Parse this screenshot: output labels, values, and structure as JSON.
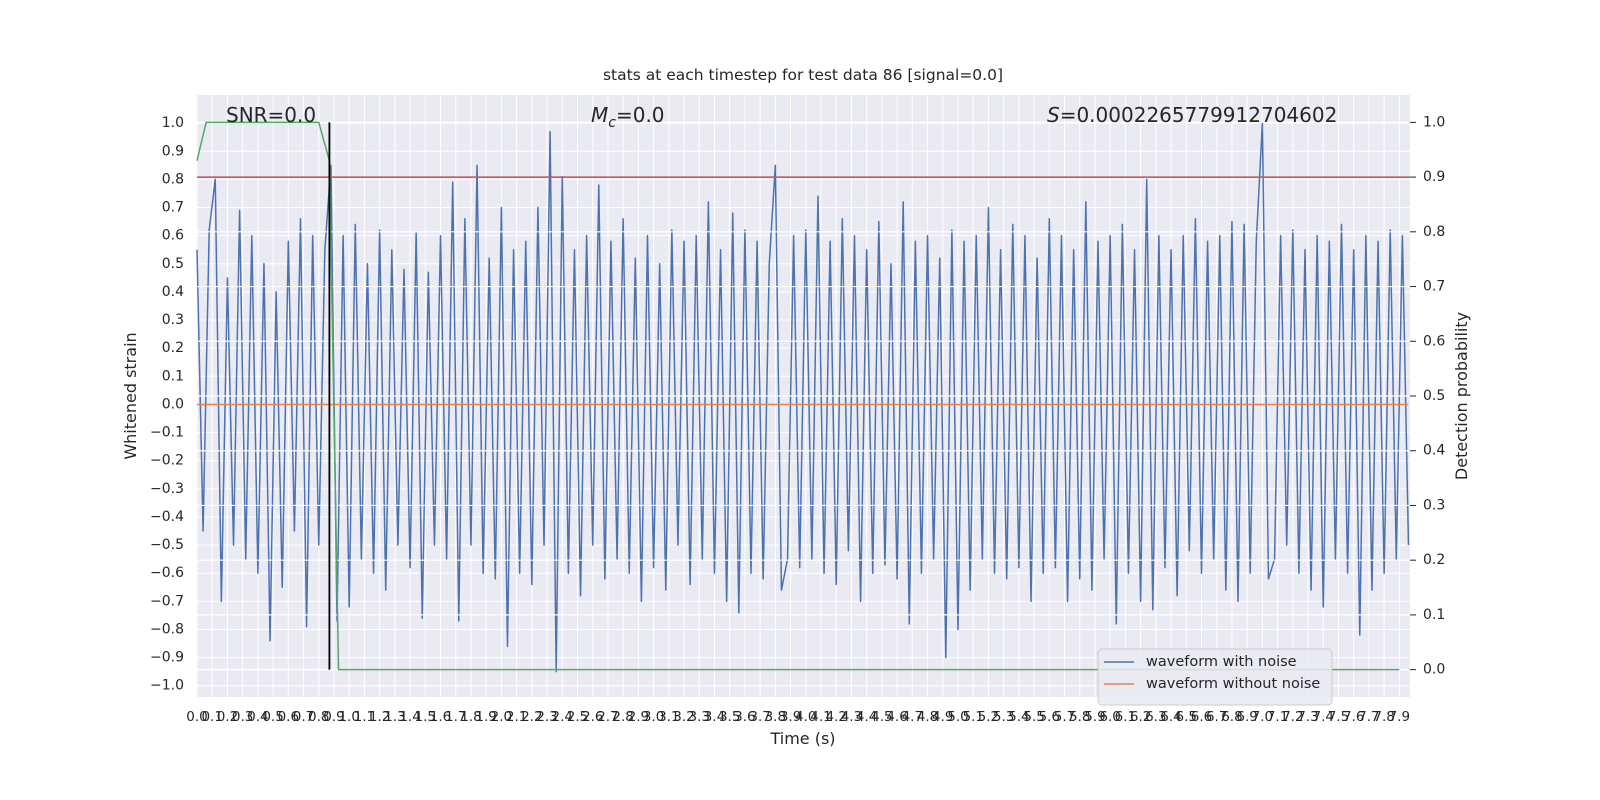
{
  "chart_data": {
    "type": "line",
    "title": "stats at each timestep for test data 86 [signal=0.0]",
    "xlabel": "Time (s)",
    "ylabel": "Whitened strain",
    "y2label": "Detection probability",
    "annotations": [
      {
        "text": "SNR=0.0"
      },
      {
        "symbol": "M",
        "subscript": "c",
        "text": "=0.0"
      },
      {
        "symbol": "S",
        "text": "=0.0002265779912704602"
      }
    ],
    "legend": "lower right",
    "grid": true,
    "xlim": [
      0,
      7.97
    ],
    "ylim": [
      -1.04,
      1.1
    ],
    "y2lim": [
      -0.05,
      1.05
    ],
    "x": [
      0,
      0.04,
      0.08,
      0.12,
      0.16,
      0.2,
      0.24,
      0.28,
      0.32,
      0.36,
      0.4,
      0.44,
      0.48,
      0.52,
      0.56,
      0.6,
      0.64,
      0.68,
      0.72,
      0.76,
      0.8,
      0.84,
      0.88,
      0.92,
      0.96,
      1,
      1.04,
      1.08,
      1.12,
      1.16,
      1.2,
      1.24,
      1.28,
      1.32,
      1.36,
      1.4,
      1.44,
      1.48,
      1.52,
      1.56,
      1.6,
      1.64,
      1.68,
      1.72,
      1.76,
      1.8,
      1.84,
      1.88,
      1.92,
      1.96,
      2,
      2.04,
      2.08,
      2.12,
      2.16,
      2.2,
      2.24,
      2.28,
      2.32,
      2.36,
      2.4,
      2.44,
      2.48,
      2.52,
      2.56,
      2.6,
      2.64,
      2.68,
      2.72,
      2.76,
      2.8,
      2.84,
      2.88,
      2.92,
      2.96,
      3,
      3.04,
      3.08,
      3.12,
      3.16,
      3.2,
      3.24,
      3.28,
      3.32,
      3.36,
      3.4,
      3.44,
      3.48,
      3.52,
      3.56,
      3.6,
      3.64,
      3.68,
      3.72,
      3.76,
      3.8,
      3.84,
      3.88,
      3.92,
      3.96,
      4,
      4.04,
      4.08,
      4.12,
      4.16,
      4.2,
      4.24,
      4.28,
      4.32,
      4.36,
      4.4,
      4.44,
      4.48,
      4.52,
      4.56,
      4.6,
      4.64,
      4.68,
      4.72,
      4.76,
      4.8,
      4.84,
      4.88,
      4.92,
      4.96,
      5,
      5.04,
      5.08,
      5.12,
      5.16,
      5.2,
      5.24,
      5.28,
      5.32,
      5.36,
      5.4,
      5.44,
      5.48,
      5.52,
      5.56,
      5.6,
      5.64,
      5.68,
      5.72,
      5.76,
      5.8,
      5.84,
      5.88,
      5.92,
      5.96,
      6,
      6.04,
      6.08,
      6.12,
      6.16,
      6.2,
      6.24,
      6.28,
      6.32,
      6.36,
      6.4,
      6.44,
      6.48,
      6.52,
      6.56,
      6.6,
      6.64,
      6.68,
      6.72,
      6.76,
      6.8,
      6.84,
      6.88,
      6.92,
      6.96,
      7,
      7.04,
      7.08,
      7.12,
      7.16,
      7.2,
      7.24,
      7.28,
      7.32,
      7.36,
      7.4,
      7.44,
      7.48,
      7.52,
      7.56,
      7.6,
      7.64,
      7.68,
      7.72,
      7.76,
      7.8,
      7.84,
      7.88,
      7.92,
      7.96
    ],
    "series": [
      {
        "name": "waveform with noise",
        "color": "#4c72b0",
        "values": [
          0.55,
          -0.45,
          0.62,
          0.8,
          -0.7,
          0.45,
          -0.5,
          0.69,
          -0.55,
          0.6,
          -0.6,
          0.5,
          -0.84,
          0.4,
          -0.65,
          0.58,
          -0.45,
          0.66,
          -0.79,
          0.6,
          -0.5,
          0.55,
          0.85,
          -0.77,
          0.6,
          -0.72,
          0.64,
          -0.55,
          0.5,
          -0.6,
          0.62,
          -0.66,
          0.55,
          -0.5,
          0.48,
          -0.58,
          0.61,
          -0.76,
          0.47,
          -0.5,
          0.6,
          -0.55,
          0.79,
          -0.77,
          0.66,
          -0.5,
          0.85,
          -0.6,
          0.52,
          -0.62,
          0.7,
          -0.86,
          0.55,
          -0.6,
          0.58,
          -0.64,
          0.7,
          -0.5,
          0.97,
          -0.95,
          0.81,
          -0.6,
          0.55,
          -0.68,
          0.6,
          -0.5,
          0.78,
          -0.62,
          0.58,
          -0.55,
          0.66,
          -0.6,
          0.52,
          -0.7,
          0.6,
          -0.58,
          0.5,
          -0.66,
          0.62,
          -0.5,
          0.58,
          -0.64,
          0.6,
          -0.55,
          0.72,
          -0.6,
          0.55,
          -0.7,
          0.68,
          -0.74,
          0.62,
          -0.6,
          0.58,
          -0.62,
          0.5,
          0.85,
          -0.66,
          -0.55,
          0.6,
          -0.58,
          0.62,
          -0.55,
          0.74,
          -0.6,
          0.58,
          -0.64,
          0.66,
          -0.52,
          0.6,
          -0.7,
          0.55,
          -0.6,
          0.65,
          -0.57,
          0.5,
          -0.62,
          0.72,
          -0.78,
          0.58,
          -0.6,
          0.6,
          -0.55,
          0.52,
          -0.9,
          0.62,
          -0.8,
          0.58,
          -0.66,
          0.6,
          -0.55,
          0.7,
          -0.6,
          0.55,
          -0.62,
          0.64,
          -0.58,
          0.6,
          -0.7,
          0.52,
          -0.6,
          0.66,
          -0.58,
          0.6,
          -0.7,
          0.55,
          -0.62,
          0.72,
          -0.66,
          0.58,
          -0.55,
          0.6,
          -0.78,
          0.64,
          -0.6,
          0.55,
          -0.7,
          0.8,
          -0.73,
          0.6,
          -0.58,
          0.55,
          -0.68,
          0.6,
          -0.52,
          0.66,
          -0.6,
          0.58,
          -0.55,
          0.6,
          -0.66,
          0.65,
          -0.7,
          0.64,
          -0.6,
          0.58,
          1.0,
          -0.62,
          -0.55,
          0.6,
          -0.5,
          0.62,
          -0.6,
          0.55,
          -0.66,
          0.6,
          -0.72,
          0.58,
          -0.55,
          0.64,
          -0.6,
          0.55,
          -0.82,
          0.6,
          -0.66,
          0.58,
          -0.6,
          0.62,
          -0.55,
          0.6,
          -0.5
        ]
      },
      {
        "name": "waveform without noise",
        "color": "#dd8452",
        "x": [
          0,
          7.96
        ],
        "values": [
          0,
          0
        ]
      }
    ],
    "probability": {
      "axis": "y2",
      "color": "#55a868",
      "x": [
        0,
        0.06,
        0.8,
        0.87,
        0.93,
        7.9
      ],
      "values": [
        0.93,
        1.0,
        1.0,
        0.93,
        0.0,
        0.0
      ]
    },
    "hlines": [
      {
        "axis": "y2",
        "y": 0.9,
        "color": "#c44e52"
      }
    ],
    "vlines": [
      {
        "axis": "y2",
        "x": 0.87,
        "ymin": 0,
        "ymax": 1,
        "color": "#000000"
      }
    ],
    "yticks": [
      {
        "value": -1,
        "label": "−1.0"
      },
      {
        "value": -0.9,
        "label": "−0.9"
      },
      {
        "value": -0.8,
        "label": "−0.8"
      },
      {
        "value": -0.7,
        "label": "−0.7"
      },
      {
        "value": -0.6,
        "label": "−0.6"
      },
      {
        "value": -0.5,
        "label": "−0.5"
      },
      {
        "value": -0.4,
        "label": "−0.4"
      },
      {
        "value": -0.3,
        "label": "−0.3"
      },
      {
        "value": -0.2,
        "label": "−0.2"
      },
      {
        "value": -0.1,
        "label": "−0.1"
      },
      {
        "value": 0,
        "label": "0.0"
      },
      0.1,
      0.2,
      0.3,
      0.4,
      0.5,
      0.6,
      0.7,
      0.8,
      0.9,
      {
        "value": 1,
        "label": "1.0"
      }
    ],
    "y2ticks": [
      {
        "value": 0,
        "label": "0.0"
      },
      0.1,
      0.2,
      0.3,
      0.4,
      0.5,
      0.6,
      0.7,
      0.8,
      0.9,
      {
        "value": 1,
        "label": "1.0"
      }
    ],
    "xticks": [
      {
        "value": 0,
        "label": "0.0"
      },
      0.1,
      0.2,
      0.3,
      0.4,
      0.5,
      0.6,
      0.7,
      0.8,
      0.9,
      {
        "value": 1,
        "label": "1.0"
      },
      1.1,
      1.2,
      1.3,
      1.4,
      1.5,
      1.6,
      1.7,
      1.8,
      1.9,
      {
        "value": 2,
        "label": "2.0"
      },
      2.1,
      2.2,
      2.3,
      2.4,
      2.5,
      2.6,
      2.7,
      2.8,
      2.9,
      {
        "value": 3,
        "label": "3.0"
      },
      3.1,
      3.2,
      3.3,
      3.4,
      3.5,
      3.6,
      3.7,
      3.8,
      3.9,
      {
        "value": 4,
        "label": "4.0"
      },
      4.1,
      4.2,
      4.3,
      4.4,
      4.5,
      4.6,
      4.7,
      4.8,
      4.9,
      {
        "value": 5,
        "label": "5.0"
      },
      5.1,
      5.2,
      5.3,
      5.4,
      5.5,
      5.6,
      5.7,
      5.8,
      5.9,
      {
        "value": 6,
        "label": "6.0"
      },
      6.1,
      6.2,
      6.3,
      6.4,
      6.5,
      6.6,
      6.7,
      6.8,
      6.9,
      {
        "value": 7,
        "label": "7.0"
      },
      7.1,
      7.2,
      7.3,
      7.4,
      7.5,
      7.6,
      7.7,
      7.8,
      7.9
    ]
  }
}
